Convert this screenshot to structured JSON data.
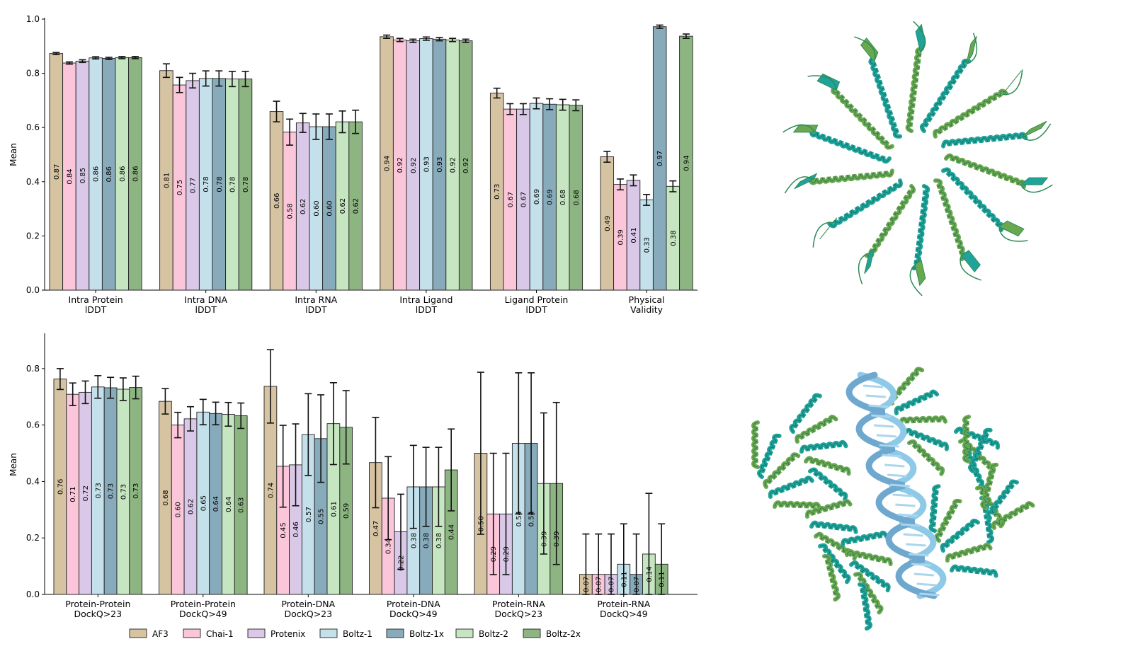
{
  "colors": {
    "AF3": "#d5c3a2",
    "Chai-1": "#fcc6da",
    "Protenix": "#d9c8e7",
    "Boltz-1": "#c3e0eb",
    "Boltz-1x": "#88abbb",
    "Boltz-2": "#c6e6c1",
    "Boltz-2x": "#8db582"
  },
  "legend": [
    "AF3",
    "Chai-1",
    "Protenix",
    "Boltz-1",
    "Boltz-1x",
    "Boltz-2",
    "Boltz-2x"
  ],
  "chart_data": [
    {
      "type": "bar",
      "ylabel": "Mean",
      "ylim": [
        0,
        1.0
      ],
      "yticks": [
        "0.0",
        "0.2",
        "0.4",
        "0.6",
        "0.8",
        "1.0"
      ],
      "groups": [
        {
          "label": [
            "Intra Protein",
            "lDDT"
          ],
          "values": [
            0.87,
            0.84,
            0.85,
            0.86,
            0.86,
            0.86,
            0.86
          ],
          "means": [
            0.873,
            0.838,
            0.845,
            0.857,
            0.855,
            0.858,
            0.858
          ],
          "err": [
            0.004,
            0.004,
            0.005,
            0.004,
            0.004,
            0.004,
            0.004
          ]
        },
        {
          "label": [
            "Intra DNA",
            "lDDT"
          ],
          "values": [
            0.81,
            0.75,
            0.77,
            0.78,
            0.78,
            0.78,
            0.78
          ],
          "means": [
            0.81,
            0.757,
            0.773,
            0.781,
            0.781,
            0.779,
            0.779
          ],
          "err": [
            0.025,
            0.028,
            0.027,
            0.028,
            0.028,
            0.028,
            0.028
          ]
        },
        {
          "label": [
            "Intra RNA",
            "lDDT"
          ],
          "values": [
            0.66,
            0.58,
            0.62,
            0.6,
            0.6,
            0.62,
            0.62
          ],
          "means": [
            0.659,
            0.583,
            0.617,
            0.603,
            0.603,
            0.621,
            0.621
          ],
          "err": [
            0.038,
            0.048,
            0.035,
            0.047,
            0.047,
            0.04,
            0.043
          ]
        },
        {
          "label": [
            "Intra Ligand",
            "lDDT"
          ],
          "values": [
            0.94,
            0.92,
            0.92,
            0.93,
            0.93,
            0.92,
            0.92
          ],
          "means": [
            0.935,
            0.923,
            0.92,
            0.928,
            0.926,
            0.923,
            0.92
          ],
          "err": [
            0.006,
            0.006,
            0.006,
            0.006,
            0.006,
            0.006,
            0.006
          ]
        },
        {
          "label": [
            "Ligand Protein",
            "lDDT"
          ],
          "values": [
            0.73,
            0.67,
            0.67,
            0.69,
            0.69,
            0.68,
            0.68
          ],
          "means": [
            0.727,
            0.668,
            0.668,
            0.689,
            0.686,
            0.684,
            0.682
          ],
          "err": [
            0.018,
            0.02,
            0.02,
            0.02,
            0.02,
            0.02,
            0.02
          ]
        },
        {
          "label": [
            "Physical",
            "Validity"
          ],
          "values": [
            0.49,
            0.39,
            0.41,
            0.33,
            0.97,
            0.38,
            0.94
          ],
          "means": [
            0.492,
            0.39,
            0.405,
            0.333,
            0.972,
            0.383,
            0.937
          ],
          "err": [
            0.02,
            0.02,
            0.02,
            0.02,
            0.006,
            0.02,
            0.008
          ]
        }
      ]
    },
    {
      "type": "bar",
      "ylabel": "Mean",
      "ylim": [
        0,
        0.92
      ],
      "yticks": [
        "0.0",
        "0.2",
        "0.4",
        "0.6",
        "0.8"
      ],
      "groups": [
        {
          "label": [
            "Protein-Protein",
            "DockQ>23"
          ],
          "values": [
            0.76,
            0.71,
            0.72,
            0.73,
            0.73,
            0.73,
            0.73
          ],
          "means": [
            0.763,
            0.709,
            0.716,
            0.735,
            0.732,
            0.727,
            0.733
          ],
          "err": [
            0.037,
            0.04,
            0.04,
            0.04,
            0.037,
            0.04,
            0.04
          ]
        },
        {
          "label": [
            "Protein-Protein",
            "DockQ>49"
          ],
          "values": [
            0.68,
            0.6,
            0.62,
            0.65,
            0.64,
            0.64,
            0.63
          ],
          "means": [
            0.684,
            0.6,
            0.622,
            0.646,
            0.641,
            0.638,
            0.633
          ],
          "err": [
            0.045,
            0.045,
            0.043,
            0.045,
            0.04,
            0.042,
            0.045
          ]
        },
        {
          "label": [
            "Protein-DNA",
            "DockQ>23"
          ],
          "values": [
            0.74,
            0.45,
            0.46,
            0.57,
            0.55,
            0.61,
            0.59
          ],
          "means": [
            0.737,
            0.454,
            0.459,
            0.566,
            0.552,
            0.605,
            0.592
          ],
          "err": [
            0.13,
            0.145,
            0.145,
            0.145,
            0.155,
            0.145,
            0.13
          ]
        },
        {
          "label": [
            "Protein-DNA",
            "DockQ>49"
          ],
          "values": [
            0.47,
            0.34,
            0.22,
            0.38,
            0.38,
            0.38,
            0.44
          ],
          "means": [
            0.467,
            0.341,
            0.222,
            0.381,
            0.381,
            0.381,
            0.441
          ],
          "err": [
            0.16,
            0.147,
            0.133,
            0.147,
            0.14,
            0.14,
            0.145
          ]
        },
        {
          "label": [
            "Protein-RNA",
            "DockQ>23"
          ],
          "values": [
            0.5,
            0.29,
            0.29,
            0.54,
            0.54,
            0.39,
            0.39
          ],
          "means": [
            0.5,
            0.285,
            0.285,
            0.535,
            0.535,
            0.393,
            0.393
          ],
          "err": [
            0.287,
            0.215,
            0.215,
            0.25,
            0.25,
            0.25,
            0.287
          ]
        },
        {
          "label": [
            "Protein-RNA",
            "DockQ>49"
          ],
          "values": [
            0.07,
            0.07,
            0.07,
            0.11,
            0.07,
            0.14,
            0.11
          ],
          "means": [
            0.071,
            0.071,
            0.071,
            0.107,
            0.071,
            0.143,
            0.107
          ],
          "err": [
            0.143,
            0.143,
            0.143,
            0.143,
            0.143,
            0.215,
            0.143
          ]
        }
      ]
    }
  ],
  "structures": [
    {
      "name": "ring-assembly",
      "colors": [
        "#1fa39a",
        "#6aa84f",
        "#2e8b57"
      ]
    },
    {
      "name": "protein-dna-complex",
      "colors": [
        "#1fa39a",
        "#6aa84f",
        "#8ec9e8"
      ]
    }
  ]
}
